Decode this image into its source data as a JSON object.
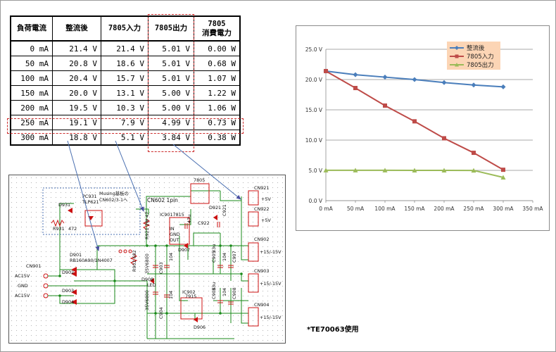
{
  "table": {
    "headers": [
      "負荷電流",
      "整流後",
      "7805入力",
      "7805出力",
      "7805\n消費電力"
    ],
    "rows": [
      [
        "0 mA",
        "21.4 V",
        "21.4 V",
        "5.01 V",
        "0.00 W"
      ],
      [
        "50 mA",
        "20.8 V",
        "18.6 V",
        "5.01 V",
        "0.68 W"
      ],
      [
        "100 mA",
        "20.4 V",
        "15.7 V",
        "5.01 V",
        "1.07 W"
      ],
      [
        "150 mA",
        "20.0 V",
        "13.1 V",
        "5.00 V",
        "1.22 W"
      ],
      [
        "200 mA",
        "19.5 V",
        "10.3 V",
        "5.00 V",
        "1.06 W"
      ],
      [
        "250 mA",
        "19.1 V",
        "7.9 V",
        "4.99 V",
        "0.73 W"
      ],
      [
        "300 mA",
        "18.8 V",
        "5.1 V",
        "3.84 V",
        "0.38 W"
      ]
    ],
    "highlight_color": "#cc2b2b"
  },
  "chart_data": {
    "type": "line",
    "x": [
      0,
      50,
      100,
      150,
      200,
      250,
      300
    ],
    "xticks": [
      "0 mA",
      "50 mA",
      "100 mA",
      "150 mA",
      "200 mA",
      "250 mA",
      "300 mA",
      "350 mA"
    ],
    "yticks": [
      "0.0 V",
      "5.0 V",
      "10.0 V",
      "15.0 V",
      "20.0 V",
      "25.0 V"
    ],
    "xlim": [
      0,
      350
    ],
    "ylim": [
      0,
      25
    ],
    "grid": "horizontal",
    "legend_position": "top-center",
    "series": [
      {
        "name": "整流後",
        "values": [
          21.4,
          20.8,
          20.4,
          20.0,
          19.5,
          19.1,
          18.8
        ],
        "color": "#4a7ebb",
        "marker": "diamond"
      },
      {
        "name": "7805入力",
        "values": [
          21.4,
          18.6,
          15.7,
          13.1,
          10.3,
          7.9,
          5.1
        ],
        "color": "#be4b48",
        "marker": "square"
      },
      {
        "name": "7805出力",
        "values": [
          5.01,
          5.01,
          5.01,
          5.0,
          5.0,
          4.99,
          3.84
        ],
        "color": "#9bbb59",
        "marker": "triangle"
      }
    ],
    "legend_bg": "#fcd5b5"
  },
  "schematic": {
    "labels": {
      "cn901": "CN901",
      "ac15v_top": "AC15V",
      "gnd": "GND",
      "ac15v_bottom": "AC15V",
      "d931": "D931",
      "pc931": "PC931",
      "tlp621": "TLP621",
      "musing": "Musing基板の",
      "musing2": "CN602/3-1へ",
      "r931": "R931",
      "r931v": "472",
      "cn602": "CN602 1pin",
      "r921": "R921 2W 47",
      "d901": "D901",
      "rb160": "RB160A90/1N4007",
      "d902": "D902",
      "d903": "D903",
      "d904": "D904",
      "r902": "R902 682",
      "d908led": "D908",
      "led": "LED",
      "ic7805": "7805",
      "ic9017815": "IC9017815",
      "ic902": "IC902",
      "ic7915": "7915",
      "d907": "D907",
      "d906": "D906",
      "d921": "D921",
      "c922": "C922",
      "c921": "C921",
      "cn921": "CN921",
      "cn922": "CN922",
      "cn902": "CN902",
      "cn903": "CN903",
      "cn904": "CN904",
      "plus5v_a": "+5V",
      "plus5v_b": "+5V",
      "pm15_a": "+15/-15V",
      "pm15_b": "+15/-15V",
      "pm15_c": "+15/-15V",
      "c903": "C903",
      "c904": "C904",
      "c905": "C905",
      "c906": "C906",
      "c907": "C907",
      "c908": "C908",
      "cap1": "35V6800",
      "cap2": "35V6800",
      "v104a": "104",
      "v104b": "104",
      "v104c": "104",
      "v104d": "104",
      "v33u1": "33u",
      "v33u2": "33u",
      "v47u": "47u",
      "in": "IN",
      "gnd_pin": "GND",
      "out": "OUT"
    },
    "wire_color": "#1a8a1a",
    "part_color": "#cc1111",
    "arrow_color": "#4a6fb0"
  },
  "note": "*TE70063使用"
}
